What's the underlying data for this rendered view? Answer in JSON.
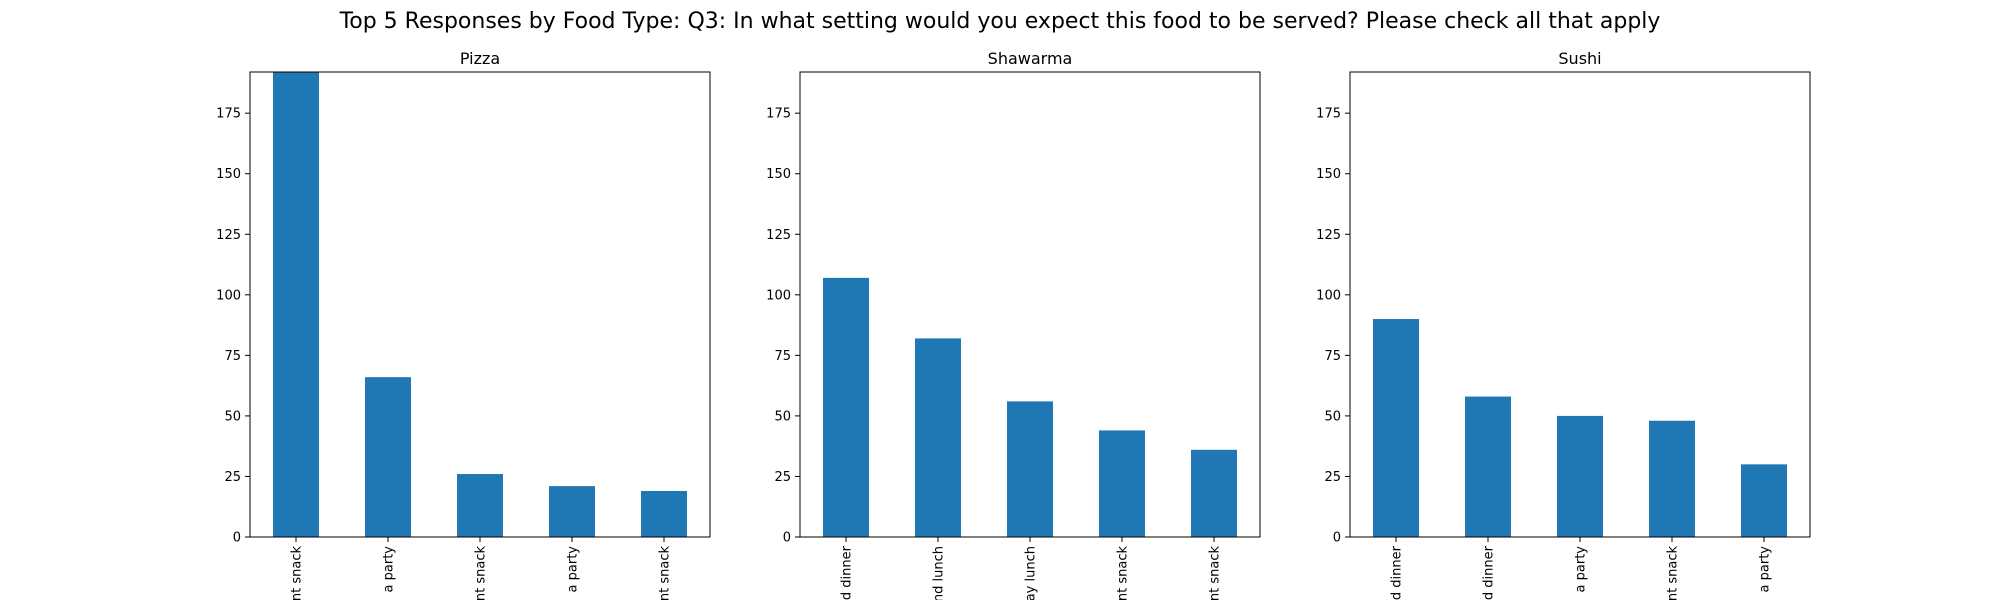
{
  "figure": {
    "title": "Top 5 Responses by Food Type: Q3: In what setting would you expect this food to be served? Please check all that apply"
  },
  "style": {
    "bar_color": "#1f77b4"
  },
  "chart_data": [
    {
      "type": "bar",
      "title": "Pizza",
      "categories": [
        "nt snack",
        "a party",
        "nt snack",
        "a party",
        "nt snack"
      ],
      "values": [
        192,
        66,
        26,
        21,
        19
      ],
      "ylim": [
        0,
        192
      ],
      "yticks": [
        0,
        25,
        50,
        75,
        100,
        125,
        150,
        175
      ],
      "grid": false
    },
    {
      "type": "bar",
      "title": "Shawarma",
      "categories": [
        "d dinner",
        "nd lunch",
        "ay lunch",
        "nt snack",
        "nt snack"
      ],
      "values": [
        107,
        82,
        56,
        44,
        36
      ],
      "ylim": [
        0,
        192
      ],
      "yticks": [
        0,
        25,
        50,
        75,
        100,
        125,
        150,
        175
      ],
      "grid": false
    },
    {
      "type": "bar",
      "title": "Sushi",
      "categories": [
        "d dinner",
        "d dinner",
        "a party",
        "nt snack",
        "a party"
      ],
      "values": [
        90,
        58,
        50,
        48,
        30
      ],
      "ylim": [
        0,
        192
      ],
      "yticks": [
        0,
        25,
        50,
        75,
        100,
        125,
        150,
        175
      ],
      "grid": false
    }
  ]
}
